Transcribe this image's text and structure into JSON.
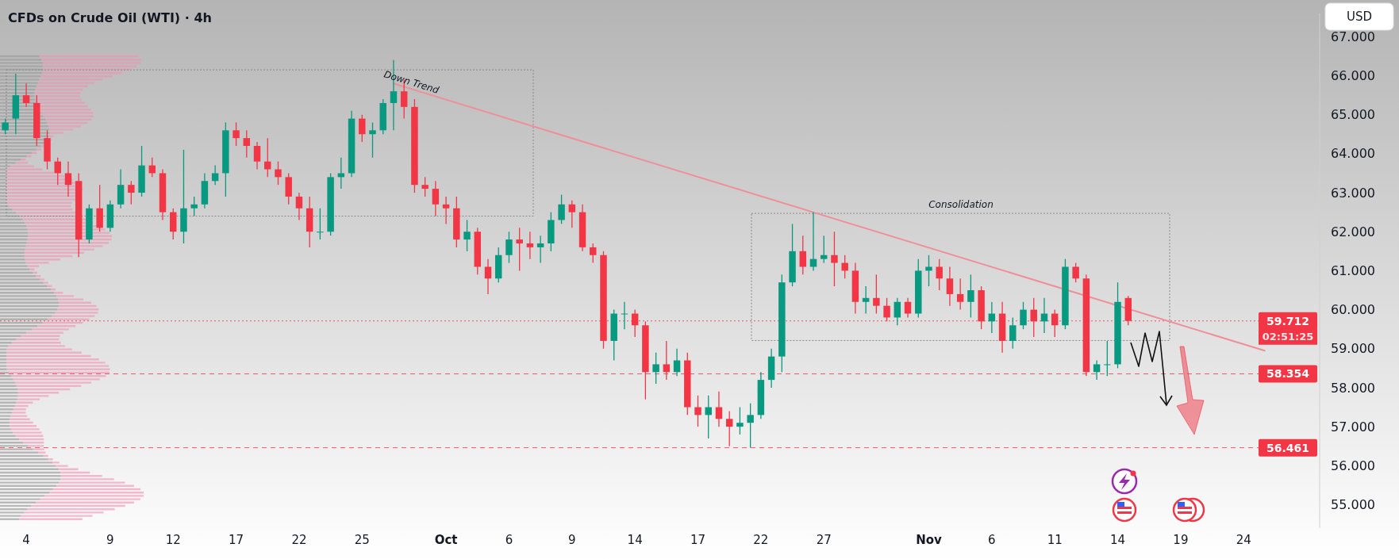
{
  "chart_data": {
    "type": "candlestick",
    "title": "CFDs on Crude Oil (WTI) · 4h",
    "categories": [
      null,
      null,
      "4",
      null,
      null,
      null,
      null,
      null,
      null,
      null,
      "9",
      null,
      null,
      null,
      null,
      null,
      "12",
      null,
      null,
      null,
      null,
      null,
      "17",
      null,
      null,
      null,
      null,
      null,
      "22",
      null,
      null,
      null,
      null,
      null,
      "25",
      null,
      null,
      null,
      null,
      null,
      null,
      null,
      "Oct",
      null,
      null,
      null,
      null,
      null,
      "6",
      null,
      null,
      null,
      null,
      null,
      "9",
      null,
      null,
      null,
      null,
      null,
      "14",
      null,
      null,
      null,
      null,
      null,
      "17",
      null,
      null,
      null,
      null,
      null,
      "22",
      null,
      null,
      null,
      null,
      null,
      "27",
      null,
      null,
      null,
      null,
      null,
      null,
      null,
      null,
      null,
      "Nov",
      null,
      null,
      null,
      null,
      null,
      "6",
      null,
      null,
      null,
      null,
      null,
      "11",
      null,
      null,
      null,
      null,
      null,
      "14",
      null,
      null,
      null,
      null,
      null,
      "19",
      null,
      null,
      null,
      null,
      null,
      "24",
      null,
      null,
      null,
      null,
      null
    ],
    "ohlc": [
      [
        64.6,
        64.9,
        64.5,
        64.8
      ],
      [
        64.9,
        66.05,
        64.5,
        65.5
      ],
      [
        65.5,
        65.8,
        65.2,
        65.3
      ],
      [
        65.3,
        65.5,
        64.2,
        64.4
      ],
      [
        64.4,
        64.6,
        63.6,
        63.8
      ],
      [
        63.8,
        63.9,
        63.2,
        63.5
      ],
      [
        63.5,
        63.8,
        62.9,
        63.2
      ],
      [
        63.3,
        63.5,
        61.35,
        61.8
      ],
      [
        61.8,
        62.7,
        61.7,
        62.6
      ],
      [
        62.6,
        63.2,
        62.0,
        62.1
      ],
      [
        62.1,
        62.8,
        62.0,
        62.7
      ],
      [
        62.7,
        63.6,
        62.6,
        63.2
      ],
      [
        63.2,
        63.3,
        62.7,
        63.0
      ],
      [
        63.0,
        64.2,
        62.9,
        63.7
      ],
      [
        63.7,
        63.9,
        63.4,
        63.5
      ],
      [
        63.5,
        63.6,
        62.3,
        62.5
      ],
      [
        62.5,
        62.6,
        61.8,
        62.0
      ],
      [
        62.0,
        64.1,
        61.7,
        62.6
      ],
      [
        62.6,
        62.9,
        62.4,
        62.7
      ],
      [
        62.7,
        63.5,
        62.6,
        63.3
      ],
      [
        63.3,
        63.7,
        63.2,
        63.5
      ],
      [
        63.5,
        64.8,
        62.9,
        64.6
      ],
      [
        64.6,
        64.8,
        64.2,
        64.4
      ],
      [
        64.4,
        64.6,
        63.9,
        64.2
      ],
      [
        64.2,
        64.3,
        63.6,
        63.8
      ],
      [
        63.8,
        64.4,
        63.4,
        63.6
      ],
      [
        63.6,
        63.8,
        63.2,
        63.4
      ],
      [
        63.4,
        63.5,
        62.7,
        62.9
      ],
      [
        62.9,
        63.0,
        62.3,
        62.6
      ],
      [
        62.6,
        62.9,
        61.6,
        62.0
      ],
      [
        62.0,
        62.6,
        61.8,
        62.0
      ],
      [
        62.0,
        63.5,
        61.9,
        63.4
      ],
      [
        63.4,
        63.9,
        63.1,
        63.5
      ],
      [
        63.5,
        65.1,
        63.4,
        64.9
      ],
      [
        64.9,
        65.0,
        64.3,
        64.5
      ],
      [
        64.5,
        64.8,
        63.9,
        64.6
      ],
      [
        64.6,
        65.4,
        64.5,
        65.3
      ],
      [
        65.3,
        66.4,
        64.6,
        65.6
      ],
      [
        65.6,
        65.9,
        64.9,
        65.2
      ],
      [
        65.2,
        65.4,
        63.0,
        63.2
      ],
      [
        63.2,
        63.4,
        62.9,
        63.1
      ],
      [
        63.1,
        63.3,
        62.4,
        62.7
      ],
      [
        62.7,
        62.9,
        62.2,
        62.6
      ],
      [
        62.6,
        62.9,
        61.6,
        61.8
      ],
      [
        61.8,
        62.3,
        61.5,
        62.0
      ],
      [
        62.0,
        62.1,
        60.9,
        61.1
      ],
      [
        61.1,
        61.3,
        60.4,
        60.8
      ],
      [
        60.8,
        61.6,
        60.7,
        61.4
      ],
      [
        61.4,
        62.0,
        61.2,
        61.8
      ],
      [
        61.8,
        62.1,
        61.0,
        61.7
      ],
      [
        61.7,
        62.0,
        61.3,
        61.6
      ],
      [
        61.6,
        61.9,
        61.2,
        61.7
      ],
      [
        61.7,
        62.5,
        61.5,
        62.3
      ],
      [
        62.3,
        62.95,
        62.2,
        62.7
      ],
      [
        62.7,
        62.8,
        62.1,
        62.5
      ],
      [
        62.5,
        62.7,
        61.5,
        61.6
      ],
      [
        61.6,
        61.7,
        61.2,
        61.4
      ],
      [
        61.4,
        61.5,
        59.0,
        59.2
      ],
      [
        59.2,
        60.0,
        58.7,
        59.9
      ],
      [
        59.9,
        60.2,
        59.5,
        59.9
      ],
      [
        59.9,
        60.0,
        59.3,
        59.6
      ],
      [
        59.6,
        59.7,
        57.7,
        58.4
      ],
      [
        58.4,
        58.9,
        58.1,
        58.6
      ],
      [
        58.6,
        59.2,
        58.2,
        58.4
      ],
      [
        58.4,
        59.0,
        58.3,
        58.7
      ],
      [
        58.7,
        58.9,
        57.3,
        57.5
      ],
      [
        57.5,
        57.8,
        57.0,
        57.3
      ],
      [
        57.3,
        57.8,
        56.7,
        57.5
      ],
      [
        57.5,
        57.9,
        57.0,
        57.2
      ],
      [
        57.2,
        57.4,
        56.5,
        57.0
      ],
      [
        57.0,
        57.5,
        56.8,
        57.1
      ],
      [
        57.1,
        57.6,
        56.461,
        57.3
      ],
      [
        57.3,
        58.4,
        57.2,
        58.2
      ],
      [
        58.2,
        59.0,
        58.0,
        58.8
      ],
      [
        58.8,
        60.9,
        58.4,
        60.7
      ],
      [
        60.7,
        62.2,
        60.6,
        61.5
      ],
      [
        61.5,
        61.9,
        60.9,
        61.1
      ],
      [
        61.1,
        62.5,
        61.0,
        61.3
      ],
      [
        61.3,
        61.9,
        61.2,
        61.4
      ],
      [
        61.4,
        62.0,
        60.6,
        61.2
      ],
      [
        61.2,
        61.4,
        60.8,
        61.0
      ],
      [
        61.0,
        61.2,
        59.9,
        60.2
      ],
      [
        60.2,
        60.6,
        59.9,
        60.3
      ],
      [
        60.3,
        60.9,
        59.9,
        60.1
      ],
      [
        60.1,
        60.3,
        59.7,
        59.8
      ],
      [
        59.8,
        60.3,
        59.6,
        60.2
      ],
      [
        60.2,
        60.3,
        59.8,
        59.9
      ],
      [
        59.9,
        61.3,
        59.8,
        61.0
      ],
      [
        61.0,
        61.4,
        60.6,
        61.1
      ],
      [
        61.1,
        61.3,
        60.5,
        60.8
      ],
      [
        60.8,
        61.1,
        60.1,
        60.4
      ],
      [
        60.4,
        60.8,
        60.0,
        60.2
      ],
      [
        60.2,
        60.9,
        59.8,
        60.5
      ],
      [
        60.5,
        60.6,
        59.5,
        59.7
      ],
      [
        59.7,
        60.2,
        59.4,
        59.9
      ],
      [
        59.9,
        60.2,
        58.9,
        59.2
      ],
      [
        59.2,
        59.8,
        59.0,
        59.6
      ],
      [
        59.6,
        60.2,
        59.5,
        60.0
      ],
      [
        60.0,
        60.3,
        59.3,
        59.7
      ],
      [
        59.7,
        60.3,
        59.4,
        59.9
      ],
      [
        59.9,
        60.0,
        59.3,
        59.6
      ],
      [
        59.6,
        61.3,
        59.5,
        61.1
      ],
      [
        61.1,
        61.2,
        60.7,
        60.8
      ],
      [
        60.8,
        60.9,
        58.3,
        58.4
      ],
      [
        58.4,
        58.7,
        58.2,
        58.6
      ],
      [
        58.6,
        59.2,
        58.3,
        58.6
      ],
      [
        58.6,
        60.7,
        58.5,
        60.2
      ],
      [
        60.3,
        60.35,
        59.6,
        59.712
      ],
      null,
      null,
      null,
      null,
      null,
      null,
      null,
      null,
      null,
      null,
      null,
      null,
      null,
      null,
      null,
      null
    ],
    "colors": [
      "#089981",
      "#089981",
      "#f23645",
      "#f23645",
      "#f23645",
      "#f23645",
      "#f23645",
      "#f23645",
      "#089981",
      "#f23645",
      "#089981",
      "#089981",
      "#f23645",
      "#089981",
      "#f23645",
      "#f23645",
      "#f23645",
      "#089981",
      "#089981",
      "#089981",
      "#089981",
      "#089981",
      "#f23645",
      "#f23645",
      "#f23645",
      "#f23645",
      "#f23645",
      "#f23645",
      "#f23645",
      "#f23645",
      "#089981",
      "#089981",
      "#089981",
      "#089981",
      "#f23645",
      "#089981",
      "#089981",
      "#089981",
      "#f23645",
      "#f23645",
      "#f23645",
      "#f23645",
      "#f23645",
      "#f23645",
      "#089981",
      "#f23645",
      "#f23645",
      "#089981",
      "#089981",
      "#f23645",
      "#f23645",
      "#089981",
      "#089981",
      "#089981",
      "#f23645",
      "#f23645",
      "#f23645",
      "#f23645",
      "#089981",
      "#089981",
      "#f23645",
      "#f23645",
      "#089981",
      "#f23645",
      "#089981",
      "#f23645",
      "#f23645",
      "#089981",
      "#f23645",
      "#f23645",
      "#089981",
      "#089981",
      "#089981",
      "#089981",
      "#089981",
      "#089981",
      "#f23645",
      "#089981",
      "#089981",
      "#f23645",
      "#f23645",
      "#f23645",
      "#089981",
      "#f23645",
      "#f23645",
      "#089981",
      "#f23645",
      "#089981",
      "#089981",
      "#f23645",
      "#f23645",
      "#f23645",
      "#089981",
      "#f23645",
      "#089981",
      "#f23645",
      "#089981",
      "#089981",
      "#f23645",
      "#089981",
      "#f23645",
      "#089981",
      "#f23645",
      "#f23645",
      "#089981",
      "#089981",
      "#089981",
      "#f23645",
      null,
      null,
      null,
      null,
      null,
      null,
      null,
      null,
      null,
      null,
      null,
      null,
      null,
      null,
      null,
      null
    ],
    "series": [
      {
        "type": "line",
        "color": "#ef8f9a",
        "values": [
          null,
          null,
          null,
          null,
          null,
          null,
          null,
          null,
          null,
          null,
          null,
          null,
          null,
          null,
          null,
          null,
          null,
          null,
          null,
          null,
          null,
          null,
          null,
          null,
          null,
          null,
          null,
          null,
          null,
          null,
          null,
          null,
          null,
          null,
          null,
          null,
          null,
          65.8,
          null,
          null,
          null,
          null,
          null,
          null,
          null,
          null,
          null,
          null,
          null,
          null,
          null,
          null,
          null,
          null,
          null,
          null,
          null,
          null,
          null,
          null,
          null,
          null,
          null,
          null,
          null,
          null,
          null,
          null,
          null,
          null,
          null,
          null,
          null,
          null,
          null,
          null,
          null,
          null,
          null,
          null,
          null,
          null,
          null,
          null,
          null,
          null,
          null,
          null,
          null,
          null,
          null,
          null,
          null,
          null,
          null,
          null,
          null,
          null,
          null,
          null,
          null,
          null,
          null,
          null,
          null,
          null,
          null,
          null,
          null,
          null,
          null,
          null,
          null,
          null,
          null,
          null,
          null,
          null,
          null,
          null,
          58.95,
          null,
          null,
          null
        ]
      }
    ],
    "ylim": [
      54.4,
      67.6
    ],
    "yticks": [
      {
        "value": 55,
        "label": "55.000"
      },
      {
        "value": 56,
        "label": "56.000"
      },
      {
        "value": 57,
        "label": "57.000"
      },
      {
        "value": 58,
        "label": "58.000"
      },
      {
        "value": 59,
        "label": "59.000"
      },
      {
        "value": 60,
        "label": "60.000"
      },
      {
        "value": 61,
        "label": "61.000"
      },
      {
        "value": 62,
        "label": "62.000"
      },
      {
        "value": 63,
        "label": "63.000"
      },
      {
        "value": 64,
        "label": "64.000"
      },
      {
        "value": 65,
        "label": "65.000"
      },
      {
        "value": 66,
        "label": "66.000"
      },
      {
        "value": 67,
        "label": "67.000"
      }
    ],
    "ref_lines": [
      {
        "axis": "y",
        "value": 59.712,
        "label": "59.712",
        "color": "#f23645",
        "line_style": "dotted"
      },
      {
        "axis": "y",
        "value": 58.354,
        "label": "58.354",
        "color": "#f23645",
        "line_style": "dashed"
      },
      {
        "axis": "y",
        "value": 56.461,
        "label": "56.461",
        "color": "#f23645",
        "line_style": "dashed"
      }
    ],
    "annotations": [
      "Down Trend",
      "Consolidation",
      "02:51:25",
      "USD"
    ]
  }
}
